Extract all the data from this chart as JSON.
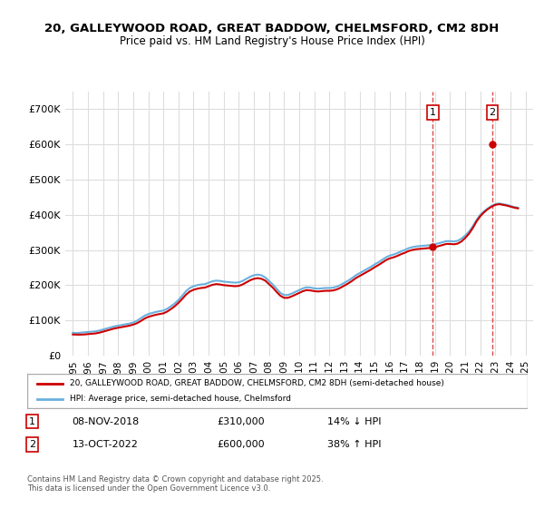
{
  "title1": "20, GALLEYWOOD ROAD, GREAT BADDOW, CHELMSFORD, CM2 8DH",
  "title2": "Price paid vs. HM Land Registry's House Price Index (HPI)",
  "ylabel": "",
  "xlabel": "",
  "ylim": [
    0,
    750000
  ],
  "yticks": [
    0,
    100000,
    200000,
    300000,
    400000,
    500000,
    600000,
    700000
  ],
  "ytick_labels": [
    "£0",
    "£100K",
    "£200K",
    "£300K",
    "£400K",
    "£500K",
    "£600K",
    "£700K"
  ],
  "hpi_color": "#6ab0de",
  "price_color": "#cc0000",
  "purchase1_date": "08-NOV-2018",
  "purchase1_price": 310000,
  "purchase1_hpi": "14% ↓ HPI",
  "purchase2_date": "13-OCT-2022",
  "purchase2_price": 600000,
  "purchase2_hpi": "38% ↑ HPI",
  "legend_label1": "20, GALLEYWOOD ROAD, GREAT BADDOW, CHELMSFORD, CM2 8DH (semi-detached house)",
  "legend_label2": "HPI: Average price, semi-detached house, Chelmsford",
  "footnote": "Contains HM Land Registry data © Crown copyright and database right 2025.\nThis data is licensed under the Open Government Licence v3.0.",
  "marker1_year": 2018.85,
  "marker1_price": 310000,
  "marker2_year": 2022.79,
  "marker2_price": 600000,
  "hpi_years": [
    1995,
    1995.25,
    1995.5,
    1995.75,
    1996,
    1996.25,
    1996.5,
    1996.75,
    1997,
    1997.25,
    1997.5,
    1997.75,
    1998,
    1998.25,
    1998.5,
    1998.75,
    1999,
    1999.25,
    1999.5,
    1999.75,
    2000,
    2000.25,
    2000.5,
    2000.75,
    2001,
    2001.25,
    2001.5,
    2001.75,
    2002,
    2002.25,
    2002.5,
    2002.75,
    2003,
    2003.25,
    2003.5,
    2003.75,
    2004,
    2004.25,
    2004.5,
    2004.75,
    2005,
    2005.25,
    2005.5,
    2005.75,
    2006,
    2006.25,
    2006.5,
    2006.75,
    2007,
    2007.25,
    2007.5,
    2007.75,
    2008,
    2008.25,
    2008.5,
    2008.75,
    2009,
    2009.25,
    2009.5,
    2009.75,
    2010,
    2010.25,
    2010.5,
    2010.75,
    2011,
    2011.25,
    2011.5,
    2011.75,
    2012,
    2012.25,
    2012.5,
    2012.75,
    2013,
    2013.25,
    2013.5,
    2013.75,
    2014,
    2014.25,
    2014.5,
    2014.75,
    2015,
    2015.25,
    2015.5,
    2015.75,
    2016,
    2016.25,
    2016.5,
    2016.75,
    2017,
    2017.25,
    2017.5,
    2017.75,
    2018,
    2018.25,
    2018.5,
    2018.75,
    2019,
    2019.25,
    2019.5,
    2019.75,
    2020,
    2020.25,
    2020.5,
    2020.75,
    2021,
    2021.25,
    2021.5,
    2021.75,
    2022,
    2022.25,
    2022.5,
    2022.75,
    2023,
    2023.25,
    2023.5,
    2023.75,
    2024,
    2024.25,
    2024.5
  ],
  "hpi_values": [
    65000,
    64000,
    65000,
    66000,
    67000,
    68000,
    69000,
    71000,
    74000,
    77000,
    80000,
    83000,
    85000,
    87000,
    89000,
    91000,
    94000,
    99000,
    106000,
    113000,
    118000,
    121000,
    124000,
    126000,
    128000,
    133000,
    140000,
    148000,
    158000,
    170000,
    183000,
    192000,
    197000,
    200000,
    202000,
    203000,
    207000,
    211000,
    213000,
    212000,
    210000,
    209000,
    208000,
    207000,
    208000,
    212000,
    218000,
    224000,
    228000,
    230000,
    228000,
    222000,
    212000,
    202000,
    190000,
    178000,
    172000,
    172000,
    176000,
    181000,
    186000,
    191000,
    194000,
    193000,
    191000,
    190000,
    191000,
    192000,
    192000,
    193000,
    196000,
    201000,
    207000,
    213000,
    220000,
    228000,
    234000,
    240000,
    246000,
    252000,
    259000,
    265000,
    272000,
    279000,
    284000,
    287000,
    291000,
    296000,
    300000,
    305000,
    308000,
    310000,
    311000,
    312000,
    313000,
    314000,
    316000,
    319000,
    322000,
    325000,
    325000,
    324000,
    326000,
    332000,
    341000,
    352000,
    367000,
    385000,
    400000,
    410000,
    418000,
    425000,
    430000,
    432000,
    430000,
    428000,
    425000,
    422000,
    420000
  ],
  "price_years": [
    1995,
    1995.25,
    1995.5,
    1995.75,
    1996,
    1996.25,
    1996.5,
    1996.75,
    1997,
    1997.25,
    1997.5,
    1997.75,
    1998,
    1998.25,
    1998.5,
    1998.75,
    1999,
    1999.25,
    1999.5,
    1999.75,
    2000,
    2000.25,
    2000.5,
    2000.75,
    2001,
    2001.25,
    2001.5,
    2001.75,
    2002,
    2002.25,
    2002.5,
    2002.75,
    2003,
    2003.25,
    2003.5,
    2003.75,
    2004,
    2004.25,
    2004.5,
    2004.75,
    2005,
    2005.25,
    2005.5,
    2005.75,
    2006,
    2006.25,
    2006.5,
    2006.75,
    2007,
    2007.25,
    2007.5,
    2007.75,
    2008,
    2008.25,
    2008.5,
    2008.75,
    2009,
    2009.25,
    2009.5,
    2009.75,
    2010,
    2010.25,
    2010.5,
    2010.75,
    2011,
    2011.25,
    2011.5,
    2011.75,
    2012,
    2012.25,
    2012.5,
    2012.75,
    2013,
    2013.25,
    2013.5,
    2013.75,
    2014,
    2014.25,
    2014.5,
    2014.75,
    2015,
    2015.25,
    2015.5,
    2015.75,
    2016,
    2016.25,
    2016.5,
    2016.75,
    2017,
    2017.25,
    2017.5,
    2017.75,
    2018,
    2018.25,
    2018.5,
    2018.75,
    2019,
    2019.25,
    2019.5,
    2019.75,
    2020,
    2020.25,
    2020.5,
    2020.75,
    2021,
    2021.25,
    2021.5,
    2021.75,
    2022,
    2022.25,
    2022.5,
    2022.75,
    2023,
    2023.25,
    2023.5,
    2023.75,
    2024,
    2024.25,
    2024.5
  ],
  "price_values": [
    60000,
    59500,
    59500,
    60000,
    61000,
    62000,
    63000,
    65000,
    68000,
    71000,
    74000,
    77000,
    79000,
    81000,
    83000,
    85000,
    88000,
    92000,
    98000,
    105000,
    110000,
    113000,
    116000,
    118000,
    120000,
    125000,
    132000,
    140000,
    150000,
    161000,
    173000,
    182000,
    187000,
    190000,
    192000,
    193000,
    197000,
    201000,
    203000,
    202000,
    200000,
    199000,
    198000,
    197000,
    198000,
    202000,
    208000,
    214000,
    218000,
    220000,
    218000,
    213000,
    203000,
    193000,
    181000,
    170000,
    164000,
    164000,
    168000,
    173000,
    178000,
    183000,
    186000,
    185000,
    183000,
    182000,
    183000,
    184000,
    184000,
    185000,
    188000,
    193000,
    199000,
    205000,
    212000,
    220000,
    226000,
    232000,
    238000,
    244000,
    251000,
    257000,
    264000,
    271000,
    276000,
    279000,
    283000,
    288000,
    292000,
    297000,
    300000,
    302000,
    303000,
    304000,
    305000,
    306000,
    308000,
    311000,
    314000,
    317000,
    317000,
    316000,
    318000,
    324000,
    334000,
    346000,
    362000,
    381000,
    396000,
    407000,
    416000,
    423000,
    428000,
    430000,
    428000,
    426000,
    423000,
    420000,
    418000
  ],
  "vline1_x": 2018.85,
  "vline2_x": 2022.79,
  "xlim": [
    1994.5,
    2025.5
  ],
  "xticks": [
    1995,
    1996,
    1997,
    1998,
    1999,
    2000,
    2001,
    2002,
    2003,
    2004,
    2005,
    2006,
    2007,
    2008,
    2009,
    2010,
    2011,
    2012,
    2013,
    2014,
    2015,
    2016,
    2017,
    2018,
    2019,
    2020,
    2021,
    2022,
    2023,
    2024,
    2025
  ]
}
